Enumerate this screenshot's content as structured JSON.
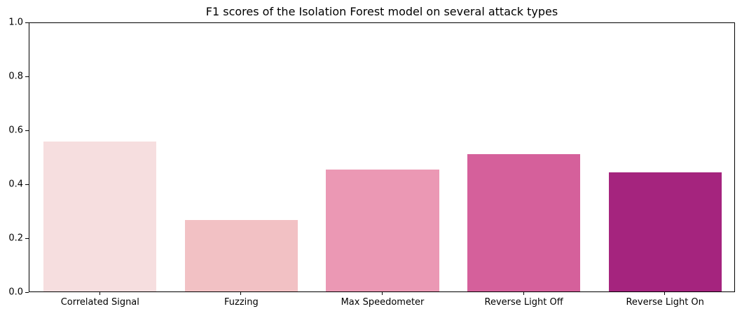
{
  "chart_data": {
    "type": "bar",
    "title": "F1 scores of the Isolation Forest model on several attack types",
    "xlabel": "",
    "ylabel": "",
    "ylim": [
      0,
      1.0
    ],
    "yticks": [
      "0.0",
      "0.2",
      "0.4",
      "0.6",
      "0.8",
      "1.0"
    ],
    "categories": [
      "Correlated Signal",
      "Fuzzing",
      "Max Speedometer",
      "Reverse Light Off",
      "Reverse Light On"
    ],
    "values": [
      0.556,
      0.265,
      0.452,
      0.509,
      0.442
    ],
    "colors": [
      "#f6dedf",
      "#f2c1c4",
      "#eb98b4",
      "#d5609b",
      "#a5247e"
    ],
    "grid": false,
    "legend": null
  }
}
